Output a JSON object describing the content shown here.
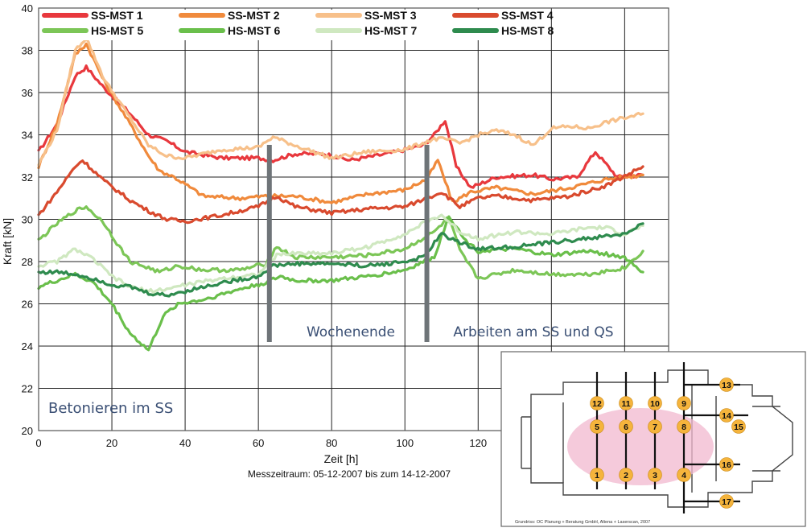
{
  "chart_data": {
    "type": "line",
    "xlabel": "Zeit [h]",
    "ylabel": "Kraft [kN]",
    "xlim": [
      0,
      172
    ],
    "ylim": [
      20,
      40
    ],
    "x_ticks": [
      0,
      20,
      40,
      60,
      80,
      100,
      120
    ],
    "x_tick_labels": [
      "0",
      "20",
      "40",
      "60",
      "80",
      "100",
      "120"
    ],
    "y_ticks": [
      20,
      22,
      24,
      26,
      28,
      30,
      32,
      34,
      36,
      38,
      40
    ],
    "y_tick_labels": [
      "20",
      "22",
      "24",
      "26",
      "28",
      "30",
      "32",
      "34",
      "36",
      "38",
      "40"
    ],
    "grid": true,
    "legend_position": "top",
    "series": [
      {
        "name": "SS-MST 1",
        "color": "#e8383d",
        "x": [
          0,
          5,
          10,
          13,
          18,
          25,
          30,
          35,
          40,
          50,
          60,
          64,
          70,
          78,
          85,
          95,
          105,
          108,
          111,
          114,
          118,
          125,
          135,
          140,
          147,
          152,
          158,
          165
        ],
        "y": [
          33.2,
          34.5,
          36.8,
          37.2,
          36.2,
          35.0,
          34.0,
          33.7,
          33.2,
          32.9,
          32.9,
          32.8,
          33.1,
          33.1,
          32.8,
          33.1,
          33.5,
          34.0,
          34.7,
          32.5,
          31.5,
          32.0,
          32.1,
          31.9,
          32.0,
          33.2,
          32.0,
          32.1
        ]
      },
      {
        "name": "SS-MST 2",
        "color": "#f08a3c",
        "x": [
          0,
          5,
          10,
          13,
          18,
          25,
          30,
          33,
          37,
          45,
          55,
          62,
          70,
          80,
          90,
          100,
          106,
          109,
          113,
          118,
          125,
          135,
          145,
          155,
          165
        ],
        "y": [
          32.5,
          34.5,
          37.8,
          38.3,
          36.5,
          34.5,
          33.0,
          32.3,
          32.0,
          31.1,
          31.0,
          31.1,
          31.1,
          30.8,
          31.2,
          31.4,
          31.9,
          32.8,
          30.8,
          31.3,
          31.5,
          31.2,
          31.5,
          31.9,
          32.1
        ]
      },
      {
        "name": "SS-MST 3",
        "color": "#f7c08a",
        "x": [
          0,
          5,
          10,
          13,
          18,
          25,
          30,
          35,
          40,
          50,
          60,
          64,
          70,
          75,
          80,
          90,
          100,
          108,
          111,
          115,
          120,
          125,
          130,
          135,
          140,
          145,
          150,
          155,
          160,
          165
        ],
        "y": [
          32.6,
          34.2,
          38.0,
          38.6,
          36.6,
          34.8,
          33.5,
          33.0,
          32.9,
          33.3,
          33.4,
          33.9,
          33.5,
          33.2,
          32.9,
          33.2,
          33.3,
          33.8,
          33.8,
          33.6,
          34.0,
          34.2,
          34.0,
          33.5,
          34.3,
          34.4,
          34.3,
          34.6,
          34.8,
          35.0
        ]
      },
      {
        "name": "SS-MST 4",
        "color": "#d94a2e",
        "x": [
          0,
          5,
          10,
          12,
          18,
          25,
          30,
          35,
          40,
          50,
          60,
          65,
          70,
          80,
          90,
          100,
          106,
          110,
          115,
          120,
          125,
          135,
          145,
          155,
          165
        ],
        "y": [
          30.2,
          31.3,
          32.5,
          32.8,
          31.8,
          30.9,
          30.4,
          30.0,
          29.9,
          30.2,
          30.6,
          31.1,
          30.6,
          30.3,
          30.5,
          30.6,
          31.0,
          31.3,
          30.6,
          31.0,
          31.1,
          30.9,
          31.1,
          31.6,
          32.5
        ]
      },
      {
        "name": "HS-MST 5",
        "color": "#7cc657",
        "x": [
          0,
          5,
          10,
          13,
          18,
          22,
          25,
          30,
          33,
          38,
          45,
          55,
          62,
          65,
          70,
          80,
          90,
          100,
          108,
          112,
          115,
          120,
          130,
          140,
          150,
          160,
          165
        ],
        "y": [
          29.0,
          29.8,
          30.4,
          30.6,
          29.8,
          28.7,
          28.0,
          27.7,
          27.5,
          27.8,
          27.6,
          27.6,
          27.9,
          28.7,
          28.2,
          28.2,
          28.3,
          28.6,
          29.4,
          30.1,
          28.5,
          27.2,
          27.6,
          27.4,
          27.4,
          27.7,
          28.5
        ]
      },
      {
        "name": "HS-MST 6",
        "color": "#6abf4b",
        "x": [
          0,
          5,
          10,
          15,
          20,
          25,
          30,
          34,
          38,
          45,
          55,
          62,
          66,
          70,
          80,
          90,
          100,
          108,
          112,
          116,
          120,
          130,
          140,
          150,
          160,
          165
        ],
        "y": [
          26.8,
          27.1,
          27.4,
          27.0,
          26.0,
          24.6,
          23.8,
          25.4,
          26.0,
          26.2,
          26.7,
          27.0,
          27.3,
          27.1,
          27.1,
          27.3,
          27.6,
          28.2,
          30.2,
          29.1,
          28.5,
          28.6,
          28.3,
          28.5,
          28.2,
          27.5
        ]
      },
      {
        "name": "HS-MST 7",
        "color": "#cfe8c0",
        "x": [
          0,
          5,
          10,
          15,
          20,
          25,
          30,
          35,
          40,
          50,
          60,
          65,
          70,
          80,
          90,
          100,
          105,
          110,
          115,
          120,
          130,
          140,
          150,
          155,
          160,
          165
        ],
        "y": [
          27.8,
          28.0,
          28.6,
          28.1,
          27.3,
          26.8,
          26.6,
          26.7,
          26.9,
          27.2,
          27.4,
          28.3,
          28.4,
          28.4,
          28.7,
          29.3,
          29.8,
          30.2,
          29.4,
          29.1,
          29.4,
          29.3,
          29.6,
          29.6,
          29.3,
          29.7
        ]
      },
      {
        "name": "HS-MST 8",
        "color": "#2e8b4e",
        "x": [
          0,
          5,
          10,
          15,
          20,
          25,
          30,
          35,
          40,
          50,
          60,
          64,
          70,
          80,
          90,
          100,
          105,
          110,
          115,
          120,
          130,
          140,
          150,
          160,
          165
        ],
        "y": [
          27.5,
          27.5,
          27.4,
          27.2,
          26.9,
          26.8,
          26.5,
          26.4,
          26.6,
          27.0,
          27.3,
          27.8,
          27.9,
          27.9,
          27.8,
          28.0,
          28.2,
          29.3,
          28.9,
          28.6,
          28.7,
          28.9,
          29.1,
          29.3,
          29.8
        ]
      }
    ],
    "annotations": [
      "Wochenende",
      "Arbeiten am SS und QS",
      "Betonieren im SS",
      "Messzeitraum: 05-12-2007 bis zum 14-12-2007"
    ],
    "vertical_markers": [
      63,
      106
    ]
  },
  "inset": {
    "numbers": [
      "13",
      "12",
      "11",
      "10",
      "9",
      "14",
      "15",
      "5",
      "6",
      "7",
      "8",
      "16",
      "1",
      "2",
      "3",
      "4",
      "17"
    ],
    "credit": "Grundriss: OC Planung + Beratung GmbH, Altena + Laserscan, 2007"
  }
}
